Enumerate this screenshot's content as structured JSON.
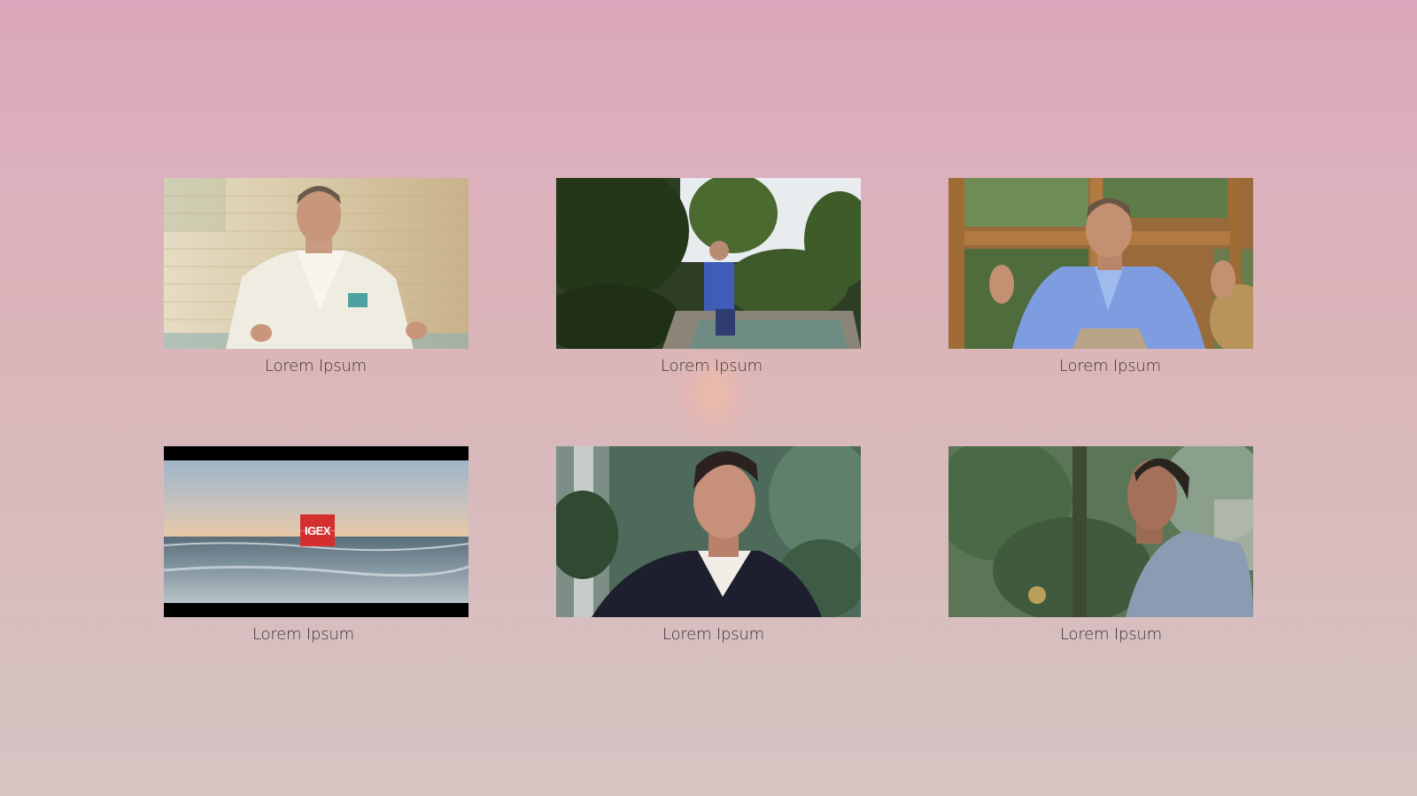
{
  "tiles": [
    {
      "caption": "Lorem Ipsum",
      "thumbnail": "man-white-jacket-interview"
    },
    {
      "caption": "Lorem Ipsum",
      "thumbnail": "man-blue-shirt-garden-pool"
    },
    {
      "caption": "Lorem Ipsum",
      "thumbnail": "man-blue-shirt-window-interview"
    },
    {
      "caption": "Lorem Ipsum",
      "thumbnail": "ocean-sunset",
      "logo_text": "IGEX"
    },
    {
      "caption": "Lorem Ipsum",
      "thumbnail": "man-plaid-jacket-portrait"
    },
    {
      "caption": "Lorem Ipsum",
      "thumbnail": "man-profile-trees"
    }
  ],
  "colors": {
    "background_top": "#dba7bc",
    "background_bottom": "#d6c4c3",
    "caption_text": "#3a3236",
    "logo_red": "#d32f2f"
  }
}
